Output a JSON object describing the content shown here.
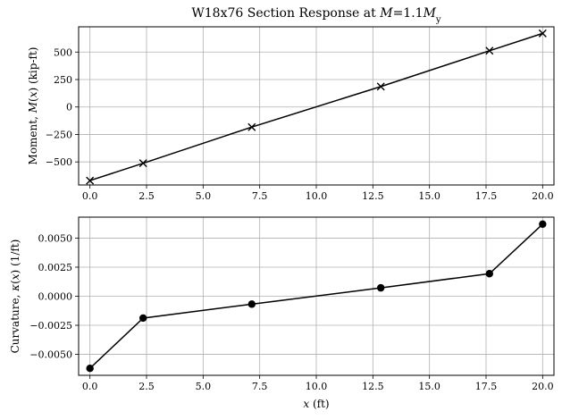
{
  "chart_data": [
    {
      "type": "line",
      "title": "W18x76 Section Response at M=1.1M_y",
      "title_parts": [
        "W18x76 Section Response at ",
        "M",
        "=1.1",
        "M",
        "y"
      ],
      "xlabel": "",
      "ylabel": "Moment, M(x) (kip-ft)",
      "ylabel_parts": [
        "Moment, ",
        "M",
        "(",
        "x",
        ") (kip-ft)"
      ],
      "xlim": [
        -0.5,
        20.5
      ],
      "ylim": [
        -710,
        730
      ],
      "grid": true,
      "xticks": [
        0.0,
        2.5,
        5.0,
        7.5,
        10.0,
        12.5,
        15.0,
        17.5,
        20.0
      ],
      "xtick_labels": [
        "0.0",
        "2.5",
        "5.0",
        "7.5",
        "10.0",
        "12.5",
        "15.0",
        "17.5",
        "20.0"
      ],
      "yticks": [
        -500,
        -250,
        0,
        250,
        500
      ],
      "ytick_labels": [
        "−500",
        "−250",
        "0",
        "250",
        "500"
      ],
      "series": [
        {
          "marker": "x",
          "color": "#000000",
          "x": [
            0.0,
            2.35,
            7.15,
            12.85,
            17.65,
            20.0
          ],
          "y": [
            -670,
            -512,
            -183,
            186,
            512,
            670
          ]
        }
      ]
    },
    {
      "type": "line",
      "title": "",
      "xlabel": "x (ft)",
      "xlabel_parts": [
        "x",
        " (ft)"
      ],
      "ylabel": "Curvature, κ(x) (1/ft)",
      "ylabel_parts": [
        "Curvature, ",
        "κ",
        "(",
        "x",
        ") (1/ft)"
      ],
      "xlim": [
        -0.5,
        20.5
      ],
      "ylim": [
        -0.0068,
        0.0068
      ],
      "grid": true,
      "xticks": [
        0.0,
        2.5,
        5.0,
        7.5,
        10.0,
        12.5,
        15.0,
        17.5,
        20.0
      ],
      "xtick_labels": [
        "0.0",
        "2.5",
        "5.0",
        "7.5",
        "10.0",
        "12.5",
        "15.0",
        "17.5",
        "20.0"
      ],
      "yticks": [
        -0.005,
        -0.0025,
        0.0,
        0.0025,
        0.005
      ],
      "ytick_labels": [
        "−0.0050",
        "−0.0025",
        "0.0000",
        "0.0025",
        "0.0050"
      ],
      "series": [
        {
          "marker": "o",
          "color": "#000000",
          "x": [
            0.0,
            2.35,
            7.15,
            12.85,
            17.65,
            20.0
          ],
          "y": [
            -0.0062,
            -0.00188,
            -0.00068,
            0.00072,
            0.00194,
            0.0062
          ]
        }
      ]
    }
  ]
}
